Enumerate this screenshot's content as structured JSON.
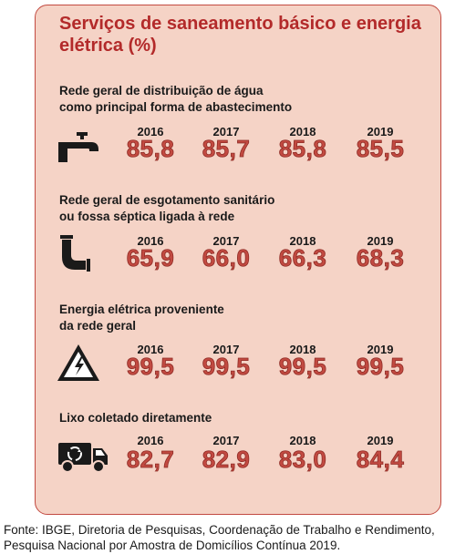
{
  "title": "Serviços de saneamento básico e energia elétrica (%)",
  "sections": [
    {
      "label_lines": [
        "Rede geral de distribuição de água",
        "como principal forma de abastecimento"
      ],
      "icon": "faucet-icon"
    },
    {
      "label_lines": [
        "Rede geral de esgotamento sanitário",
        "ou fossa séptica ligada à rede"
      ],
      "icon": "pipe-icon"
    },
    {
      "label_lines": [
        "Energia elétrica proveniente",
        "da rede geral"
      ],
      "icon": "electricity-warning-icon"
    },
    {
      "label_lines": [
        "Lixo coletado diretamente",
        ""
      ],
      "icon": "garbage-truck-icon"
    }
  ],
  "chart_data": {
    "type": "table",
    "title": "Serviços de saneamento básico e energia elétrica (%)",
    "columns": [
      "2016",
      "2017",
      "2018",
      "2019"
    ],
    "rows": [
      {
        "label": "Rede geral de distribuição de água como principal forma de abastecimento",
        "values": [
          "85,8",
          "85,7",
          "85,8",
          "85,5"
        ]
      },
      {
        "label": "Rede geral de esgotamento sanitário ou fossa séptica ligada à rede",
        "values": [
          "65,9",
          "66,0",
          "66,3",
          "68,3"
        ]
      },
      {
        "label": "Energia elétrica proveniente da rede geral",
        "values": [
          "99,5",
          "99,5",
          "99,5",
          "99,5"
        ]
      },
      {
        "label": "Lixo coletado diretamente",
        "values": [
          "82,7",
          "82,9",
          "83,0",
          "84,4"
        ]
      }
    ]
  },
  "source_lines": [
    "Fonte: IBGE, Diretoria de Pesquisas, Coordenação de Trabalho e Rendimento,",
    "Pesquisa Nacional por Amostra de Domicílios Contínua 2019."
  ],
  "colors": {
    "accent": "#c24a41",
    "title": "#b32a2a",
    "panel": "#f5d3c6",
    "text": "#1a1a1a"
  }
}
